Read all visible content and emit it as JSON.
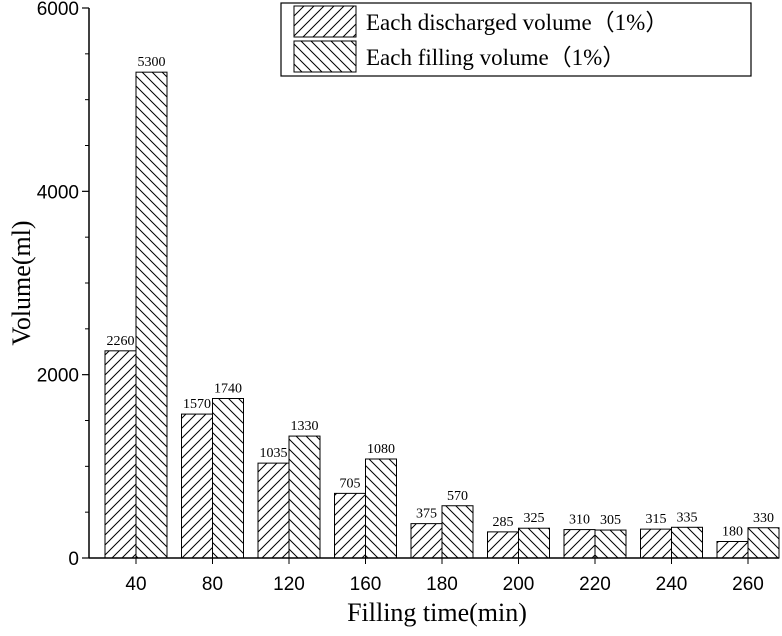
{
  "chart_data": {
    "type": "bar",
    "categories": [
      "40",
      "80",
      "120",
      "160",
      "180",
      "200",
      "220",
      "240",
      "260"
    ],
    "series": [
      {
        "name": "Each discharged volume（1%）",
        "values": [
          2260,
          1570,
          1035,
          705,
          375,
          285,
          310,
          315,
          180
        ],
        "pattern": "forward-hatch"
      },
      {
        "name": "Each filling volume（1%）",
        "values": [
          5300,
          1740,
          1330,
          1080,
          570,
          325,
          305,
          335,
          330
        ],
        "pattern": "back-hatch"
      }
    ],
    "data_labels": [
      [
        "2260",
        "1570",
        "1035",
        "705",
        "375",
        "285",
        "310",
        "315",
        "180"
      ],
      [
        "5300",
        "1740",
        "1330",
        "1080",
        "570",
        "325",
        "305",
        "335",
        "330"
      ]
    ],
    "title": "",
    "xlabel": "Filling time(min)",
    "ylabel": "Volume(ml)",
    "ylim": [
      0,
      6000
    ],
    "yticks": [
      "0",
      "2000",
      "4000",
      "6000"
    ],
    "grid": false,
    "legend_position": "top-right",
    "colors": {
      "bar_fill": "#ffffff",
      "hatch": "#000000",
      "axis": "#000000"
    }
  }
}
